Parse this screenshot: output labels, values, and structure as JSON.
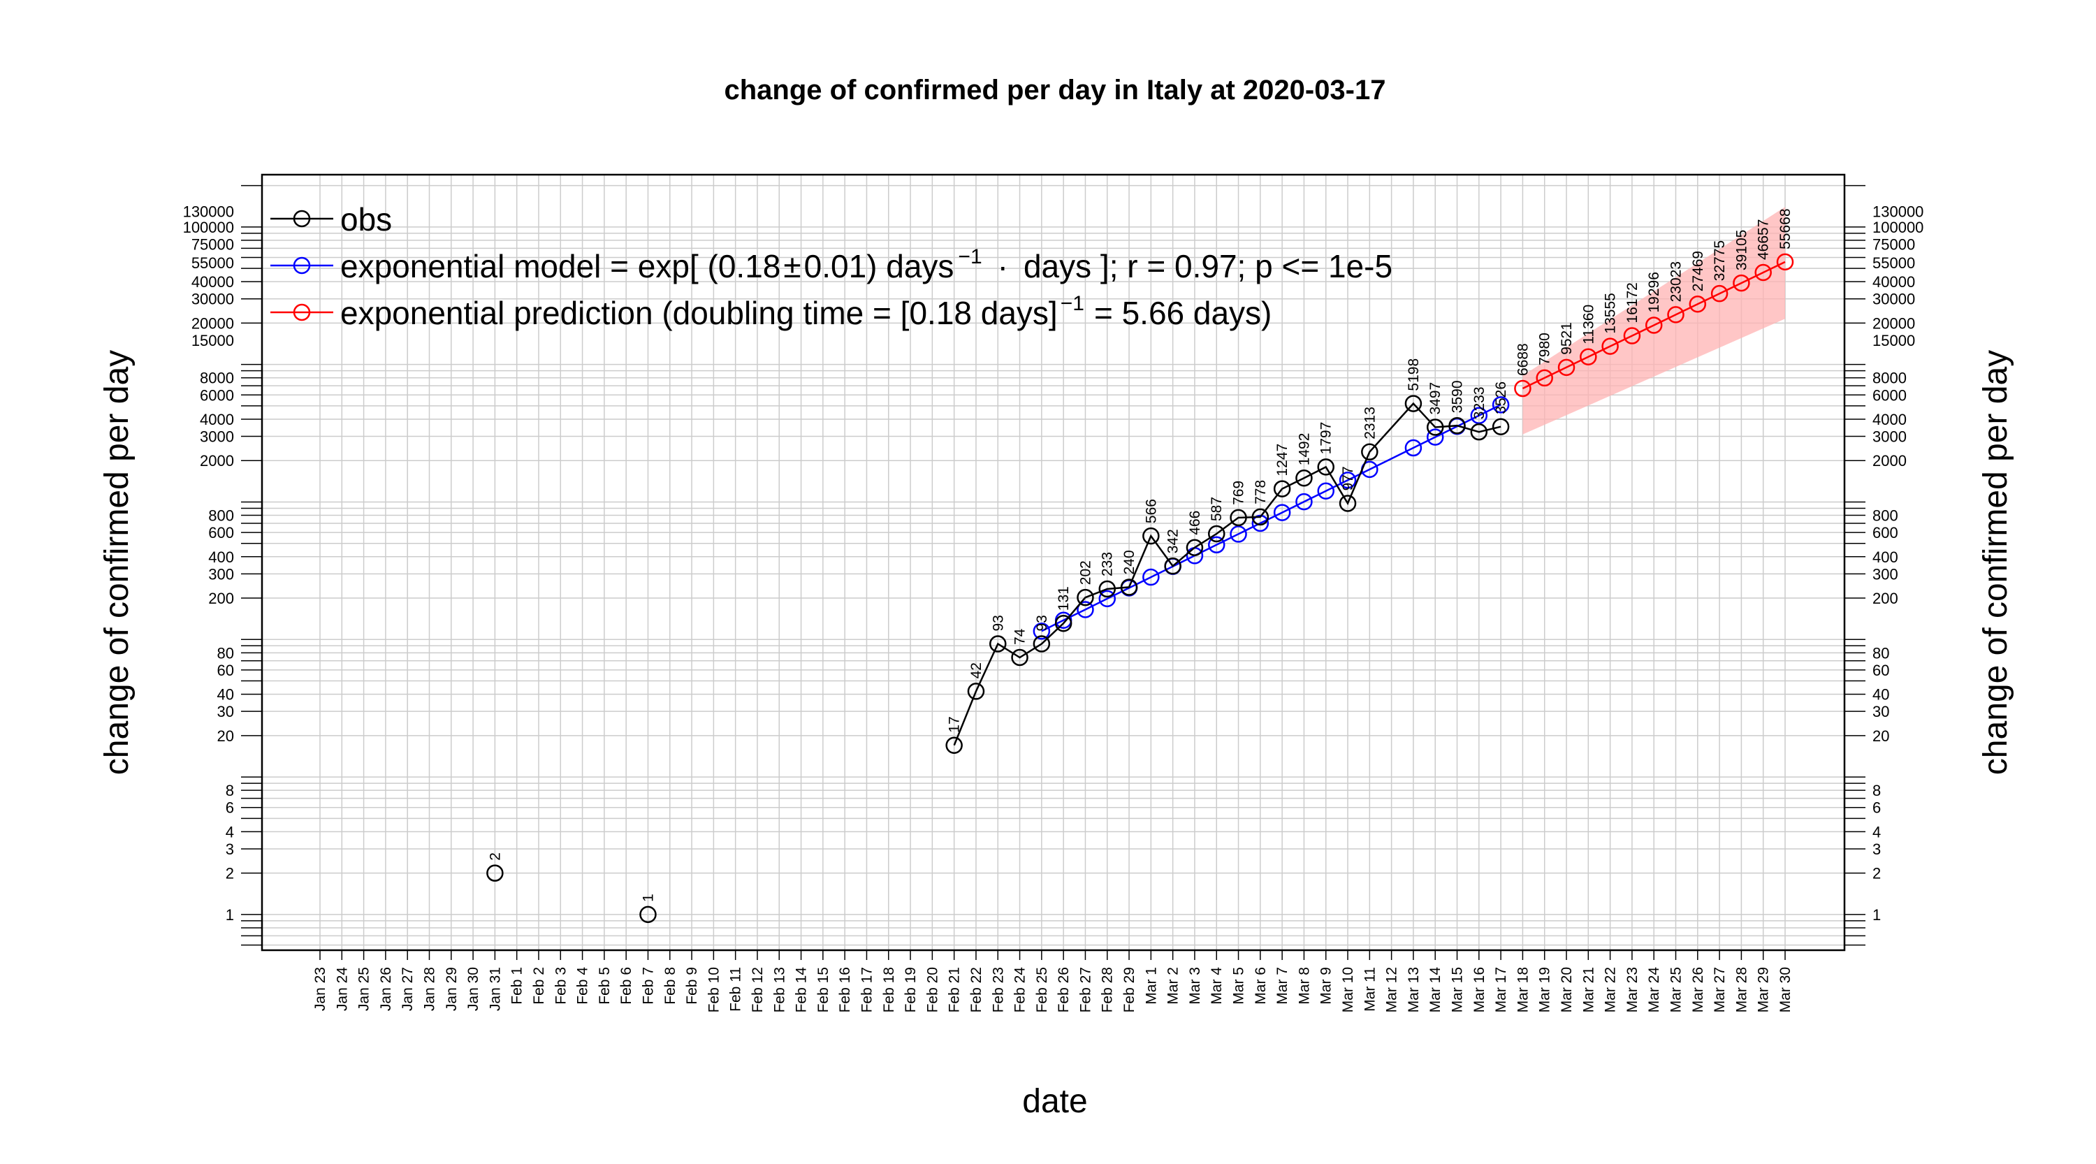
{
  "chart_data": {
    "type": "line",
    "title": "change of confirmed per day in Italy at 2020-03-17",
    "xlabel": "date",
    "ylabel": "change of confirmed per day",
    "yscale": "log",
    "ylim": [
      0.55,
      240000
    ],
    "grid": true,
    "legend_position": "top-left",
    "dates": [
      "Jan 23",
      "Jan 24",
      "Jan 25",
      "Jan 26",
      "Jan 27",
      "Jan 28",
      "Jan 29",
      "Jan 30",
      "Jan 31",
      "Feb 1",
      "Feb 2",
      "Feb 3",
      "Feb 4",
      "Feb 5",
      "Feb 6",
      "Feb 7",
      "Feb 8",
      "Feb 9",
      "Feb 10",
      "Feb 11",
      "Feb 12",
      "Feb 13",
      "Feb 14",
      "Feb 15",
      "Feb 16",
      "Feb 17",
      "Feb 18",
      "Feb 19",
      "Feb 20",
      "Feb 21",
      "Feb 22",
      "Feb 23",
      "Feb 24",
      "Feb 25",
      "Feb 26",
      "Feb 27",
      "Feb 28",
      "Feb 29",
      "Mar 1",
      "Mar 2",
      "Mar 3",
      "Mar 4",
      "Mar 5",
      "Mar 6",
      "Mar 7",
      "Mar 8",
      "Mar 9",
      "Mar 10",
      "Mar 11",
      "Mar 12",
      "Mar 13",
      "Mar 14",
      "Mar 15",
      "Mar 16",
      "Mar 17",
      "Mar 18",
      "Mar 19",
      "Mar 20",
      "Mar 21",
      "Mar 22",
      "Mar 23",
      "Mar 24",
      "Mar 25",
      "Mar 26",
      "Mar 27",
      "Mar 28",
      "Mar 29",
      "Mar 30"
    ],
    "y_ticks": [
      {
        "value": 1,
        "label": "1"
      },
      {
        "value": 2,
        "label": "2"
      },
      {
        "value": 3,
        "label": "3"
      },
      {
        "value": 4,
        "label": "4"
      },
      {
        "value": 6,
        "label": "6"
      },
      {
        "value": 8,
        "label": "8"
      },
      {
        "value": 20,
        "label": "20"
      },
      {
        "value": 30,
        "label": "30"
      },
      {
        "value": 40,
        "label": "40"
      },
      {
        "value": 60,
        "label": "60"
      },
      {
        "value": 80,
        "label": "80"
      },
      {
        "value": 200,
        "label": "200"
      },
      {
        "value": 300,
        "label": "300"
      },
      {
        "value": 400,
        "label": "400"
      },
      {
        "value": 600,
        "label": "600"
      },
      {
        "value": 800,
        "label": "800"
      },
      {
        "value": 2000,
        "label": "2000"
      },
      {
        "value": 3000,
        "label": "3000"
      },
      {
        "value": 4000,
        "label": "4000"
      },
      {
        "value": 6000,
        "label": "6000"
      },
      {
        "value": 8000,
        "label": "8000"
      },
      {
        "value": 15000,
        "label": "15000"
      },
      {
        "value": 20000,
        "label": "20000"
      },
      {
        "value": 30000,
        "label": "30000"
      },
      {
        "value": 40000,
        "label": "40000"
      },
      {
        "value": 55000,
        "label": "55000"
      },
      {
        "value": 75000,
        "label": "75000"
      },
      {
        "value": 100000,
        "label": "100000"
      },
      {
        "value": 130000,
        "label": "130000"
      }
    ],
    "series": [
      {
        "name": "obs",
        "color": "#000000",
        "segments": [
          [
            {
              "x": "Jan 31",
              "y": 2,
              "label": "2"
            }
          ],
          [
            {
              "x": "Feb 7",
              "y": 1,
              "label": "1"
            }
          ],
          [
            {
              "x": "Feb 21",
              "y": 17,
              "label": "17"
            },
            {
              "x": "Feb 22",
              "y": 42,
              "label": "42"
            },
            {
              "x": "Feb 23",
              "y": 93,
              "label": "93"
            },
            {
              "x": "Feb 24",
              "y": 74,
              "label": "74"
            },
            {
              "x": "Feb 25",
              "y": 93,
              "label": "93"
            },
            {
              "x": "Feb 26",
              "y": 131,
              "label": "131"
            },
            {
              "x": "Feb 27",
              "y": 202,
              "label": "202"
            },
            {
              "x": "Feb 28",
              "y": 233,
              "label": "233"
            },
            {
              "x": "Feb 29",
              "y": 240,
              "label": "240"
            },
            {
              "x": "Mar 1",
              "y": 566,
              "label": "566"
            },
            {
              "x": "Mar 2",
              "y": 342,
              "label": "342"
            },
            {
              "x": "Mar 3",
              "y": 466,
              "label": "466"
            },
            {
              "x": "Mar 4",
              "y": 587,
              "label": "587"
            },
            {
              "x": "Mar 5",
              "y": 769,
              "label": "769"
            },
            {
              "x": "Mar 6",
              "y": 778,
              "label": "778"
            },
            {
              "x": "Mar 7",
              "y": 1247,
              "label": "1247"
            },
            {
              "x": "Mar 8",
              "y": 1492,
              "label": "1492"
            },
            {
              "x": "Mar 9",
              "y": 1797,
              "label": "1797"
            },
            {
              "x": "Mar 10",
              "y": 977,
              "label": "977"
            },
            {
              "x": "Mar 11",
              "y": 2313,
              "label": "2313"
            },
            {
              "x": "Mar 13",
              "y": 5198,
              "label": "5198"
            },
            {
              "x": "Mar 14",
              "y": 3497,
              "label": "3497"
            },
            {
              "x": "Mar 15",
              "y": 3590,
              "label": "3590"
            },
            {
              "x": "Mar 16",
              "y": 3233,
              "label": "3233"
            },
            {
              "x": "Mar 17",
              "y": 3526,
              "label": "3526"
            }
          ]
        ]
      },
      {
        "name": "exponential model = exp[ (0.18 ± 0.01) days^-1 · days ]; r = 0.97; p <= 1e-5",
        "color": "#0000ff",
        "points": [
          {
            "x": "Feb 25",
            "y": 115
          },
          {
            "x": "Feb 26",
            "y": 138
          },
          {
            "x": "Feb 27",
            "y": 165
          },
          {
            "x": "Feb 28",
            "y": 198
          },
          {
            "x": "Feb 29",
            "y": 237
          },
          {
            "x": "Mar 1",
            "y": 284
          },
          {
            "x": "Mar 2",
            "y": 340
          },
          {
            "x": "Mar 3",
            "y": 407
          },
          {
            "x": "Mar 4",
            "y": 488
          },
          {
            "x": "Mar 5",
            "y": 584
          },
          {
            "x": "Mar 6",
            "y": 700
          },
          {
            "x": "Mar 7",
            "y": 838
          },
          {
            "x": "Mar 8",
            "y": 1004
          },
          {
            "x": "Mar 9",
            "y": 1202
          },
          {
            "x": "Mar 10",
            "y": 1440
          },
          {
            "x": "Mar 11",
            "y": 1725
          },
          {
            "x": "Mar 13",
            "y": 2474
          },
          {
            "x": "Mar 14",
            "y": 2963
          },
          {
            "x": "Mar 15",
            "y": 3550
          },
          {
            "x": "Mar 16",
            "y": 4252
          },
          {
            "x": "Mar 17",
            "y": 5093
          }
        ]
      },
      {
        "name": "exponential prediction (doubling time = [0.18 days]^-1 = 5.66 days)",
        "color": "#ff0000",
        "band": {
          "lower": [
            {
              "x": "Mar 18",
              "y": 3100
            },
            {
              "x": "Mar 30",
              "y": 21500
            }
          ],
          "upper": [
            {
              "x": "Mar 18",
              "y": 8300
            },
            {
              "x": "Mar 30",
              "y": 140000
            }
          ]
        },
        "points": [
          {
            "x": "Mar 18",
            "y": 6688,
            "label": "6688"
          },
          {
            "x": "Mar 19",
            "y": 7980,
            "label": "7980"
          },
          {
            "x": "Mar 20",
            "y": 9521,
            "label": "9521"
          },
          {
            "x": "Mar 21",
            "y": 11360,
            "label": "11360"
          },
          {
            "x": "Mar 22",
            "y": 13555,
            "label": "13555"
          },
          {
            "x": "Mar 23",
            "y": 16172,
            "label": "16172"
          },
          {
            "x": "Mar 24",
            "y": 19296,
            "label": "19296"
          },
          {
            "x": "Mar 25",
            "y": 23023,
            "label": "23023"
          },
          {
            "x": "Mar 26",
            "y": 27469,
            "label": "27469"
          },
          {
            "x": "Mar 27",
            "y": 32775,
            "label": "32775"
          },
          {
            "x": "Mar 28",
            "y": 39105,
            "label": "39105"
          },
          {
            "x": "Mar 29",
            "y": 46657,
            "label": "46657"
          },
          {
            "x": "Mar 30",
            "y": 55668,
            "label": "55668"
          }
        ]
      }
    ],
    "legend": {
      "obs": "obs",
      "model_prefix": "exponential model = exp[ (0.18",
      "model_pm": "±",
      "model_mid": "0.01) days",
      "model_sup": "−1",
      "model_dot": "·",
      "model_suffix": "days ]; r = 0.97; p <= 1e-5",
      "pred_prefix": "exponential prediction (doubling time = [0.18 days]",
      "pred_sup": "−1",
      "pred_suffix": "= 5.66 days)"
    }
  }
}
